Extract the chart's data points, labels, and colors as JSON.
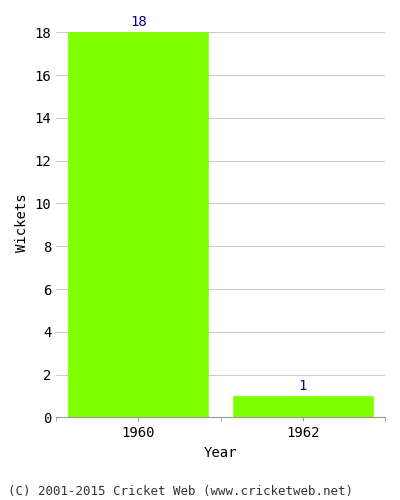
{
  "years": [
    "1960",
    "1962"
  ],
  "values": [
    18,
    1
  ],
  "bar_color": "#7fff00",
  "bar_edgecolor": "#7fff00",
  "label_color": "#00008b",
  "title": "",
  "xlabel": "Year",
  "ylabel": "Wickets",
  "ylim": [
    0,
    18
  ],
  "yticks": [
    0,
    2,
    4,
    6,
    8,
    10,
    12,
    14,
    16,
    18
  ],
  "annotation_fontsize": 10,
  "axis_label_fontsize": 10,
  "tick_fontsize": 10,
  "footnote": "(C) 2001-2015 Cricket Web (www.cricketweb.net)",
  "footnote_fontsize": 9,
  "background_color": "#ffffff",
  "grid_color": "#cccccc",
  "bar_width": 0.85
}
